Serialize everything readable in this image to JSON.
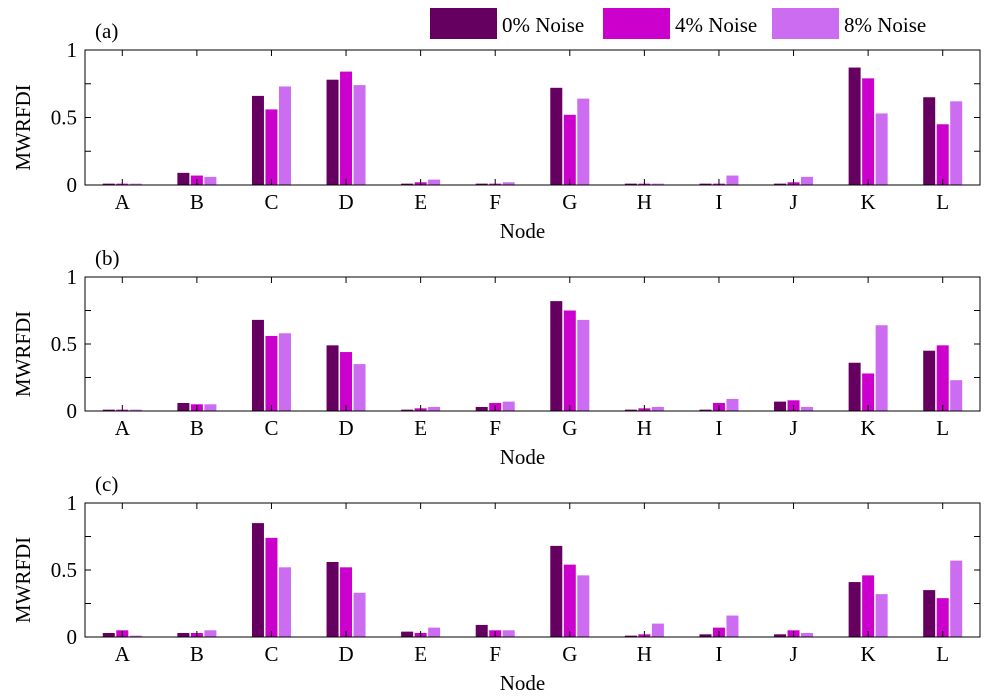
{
  "legend": [
    {
      "label": "0% Noise",
      "color": "#650060"
    },
    {
      "label": "4% Noise",
      "color": "#cc00cc"
    },
    {
      "label": "8% Noise",
      "color": "#cc6cf0"
    }
  ],
  "chart_data": [
    {
      "type": "bar",
      "panel_label": "(a)",
      "xlabel": "Node",
      "ylabel": "MWRFDI",
      "ylim": [
        0,
        1
      ],
      "yticks": [
        "0",
        "0.5",
        "1"
      ],
      "categories": [
        "A",
        "B",
        "C",
        "D",
        "E",
        "F",
        "G",
        "H",
        "I",
        "J",
        "K",
        "L"
      ],
      "series": [
        {
          "name": "0% Noise",
          "values": [
            0.01,
            0.09,
            0.66,
            0.78,
            0.01,
            0.01,
            0.72,
            0.01,
            0.01,
            0.01,
            0.87,
            0.65
          ]
        },
        {
          "name": "4% Noise",
          "values": [
            0.01,
            0.07,
            0.56,
            0.84,
            0.02,
            0.01,
            0.52,
            0.01,
            0.01,
            0.02,
            0.79,
            0.45
          ]
        },
        {
          "name": "8% Noise",
          "values": [
            0.01,
            0.06,
            0.73,
            0.74,
            0.04,
            0.02,
            0.64,
            0.01,
            0.07,
            0.06,
            0.53,
            0.62
          ]
        }
      ]
    },
    {
      "type": "bar",
      "panel_label": "(b)",
      "xlabel": "Node",
      "ylabel": "MWRFDI",
      "ylim": [
        0,
        1
      ],
      "yticks": [
        "0",
        "0.5",
        "1"
      ],
      "categories": [
        "A",
        "B",
        "C",
        "D",
        "E",
        "F",
        "G",
        "H",
        "I",
        "J",
        "K",
        "L"
      ],
      "series": [
        {
          "name": "0% Noise",
          "values": [
            0.01,
            0.06,
            0.68,
            0.49,
            0.01,
            0.03,
            0.82,
            0.01,
            0.01,
            0.07,
            0.36,
            0.45
          ]
        },
        {
          "name": "4% Noise",
          "values": [
            0.01,
            0.05,
            0.56,
            0.44,
            0.02,
            0.06,
            0.75,
            0.02,
            0.06,
            0.08,
            0.28,
            0.49
          ]
        },
        {
          "name": "8% Noise",
          "values": [
            0.01,
            0.05,
            0.58,
            0.35,
            0.03,
            0.07,
            0.68,
            0.03,
            0.09,
            0.03,
            0.64,
            0.23
          ]
        }
      ]
    },
    {
      "type": "bar",
      "panel_label": "(c)",
      "xlabel": "Node",
      "ylabel": "MWRFDI",
      "ylim": [
        0,
        1
      ],
      "yticks": [
        "0",
        "0.5",
        "1"
      ],
      "categories": [
        "A",
        "B",
        "C",
        "D",
        "E",
        "F",
        "G",
        "H",
        "I",
        "J",
        "K",
        "L"
      ],
      "series": [
        {
          "name": "0% Noise",
          "values": [
            0.03,
            0.03,
            0.85,
            0.56,
            0.04,
            0.09,
            0.68,
            0.01,
            0.02,
            0.02,
            0.41,
            0.35
          ]
        },
        {
          "name": "4% Noise",
          "values": [
            0.05,
            0.03,
            0.74,
            0.52,
            0.03,
            0.05,
            0.54,
            0.02,
            0.07,
            0.05,
            0.46,
            0.29
          ]
        },
        {
          "name": "8% Noise",
          "values": [
            0.01,
            0.05,
            0.52,
            0.33,
            0.07,
            0.05,
            0.46,
            0.1,
            0.16,
            0.03,
            0.32,
            0.57
          ]
        }
      ]
    }
  ]
}
